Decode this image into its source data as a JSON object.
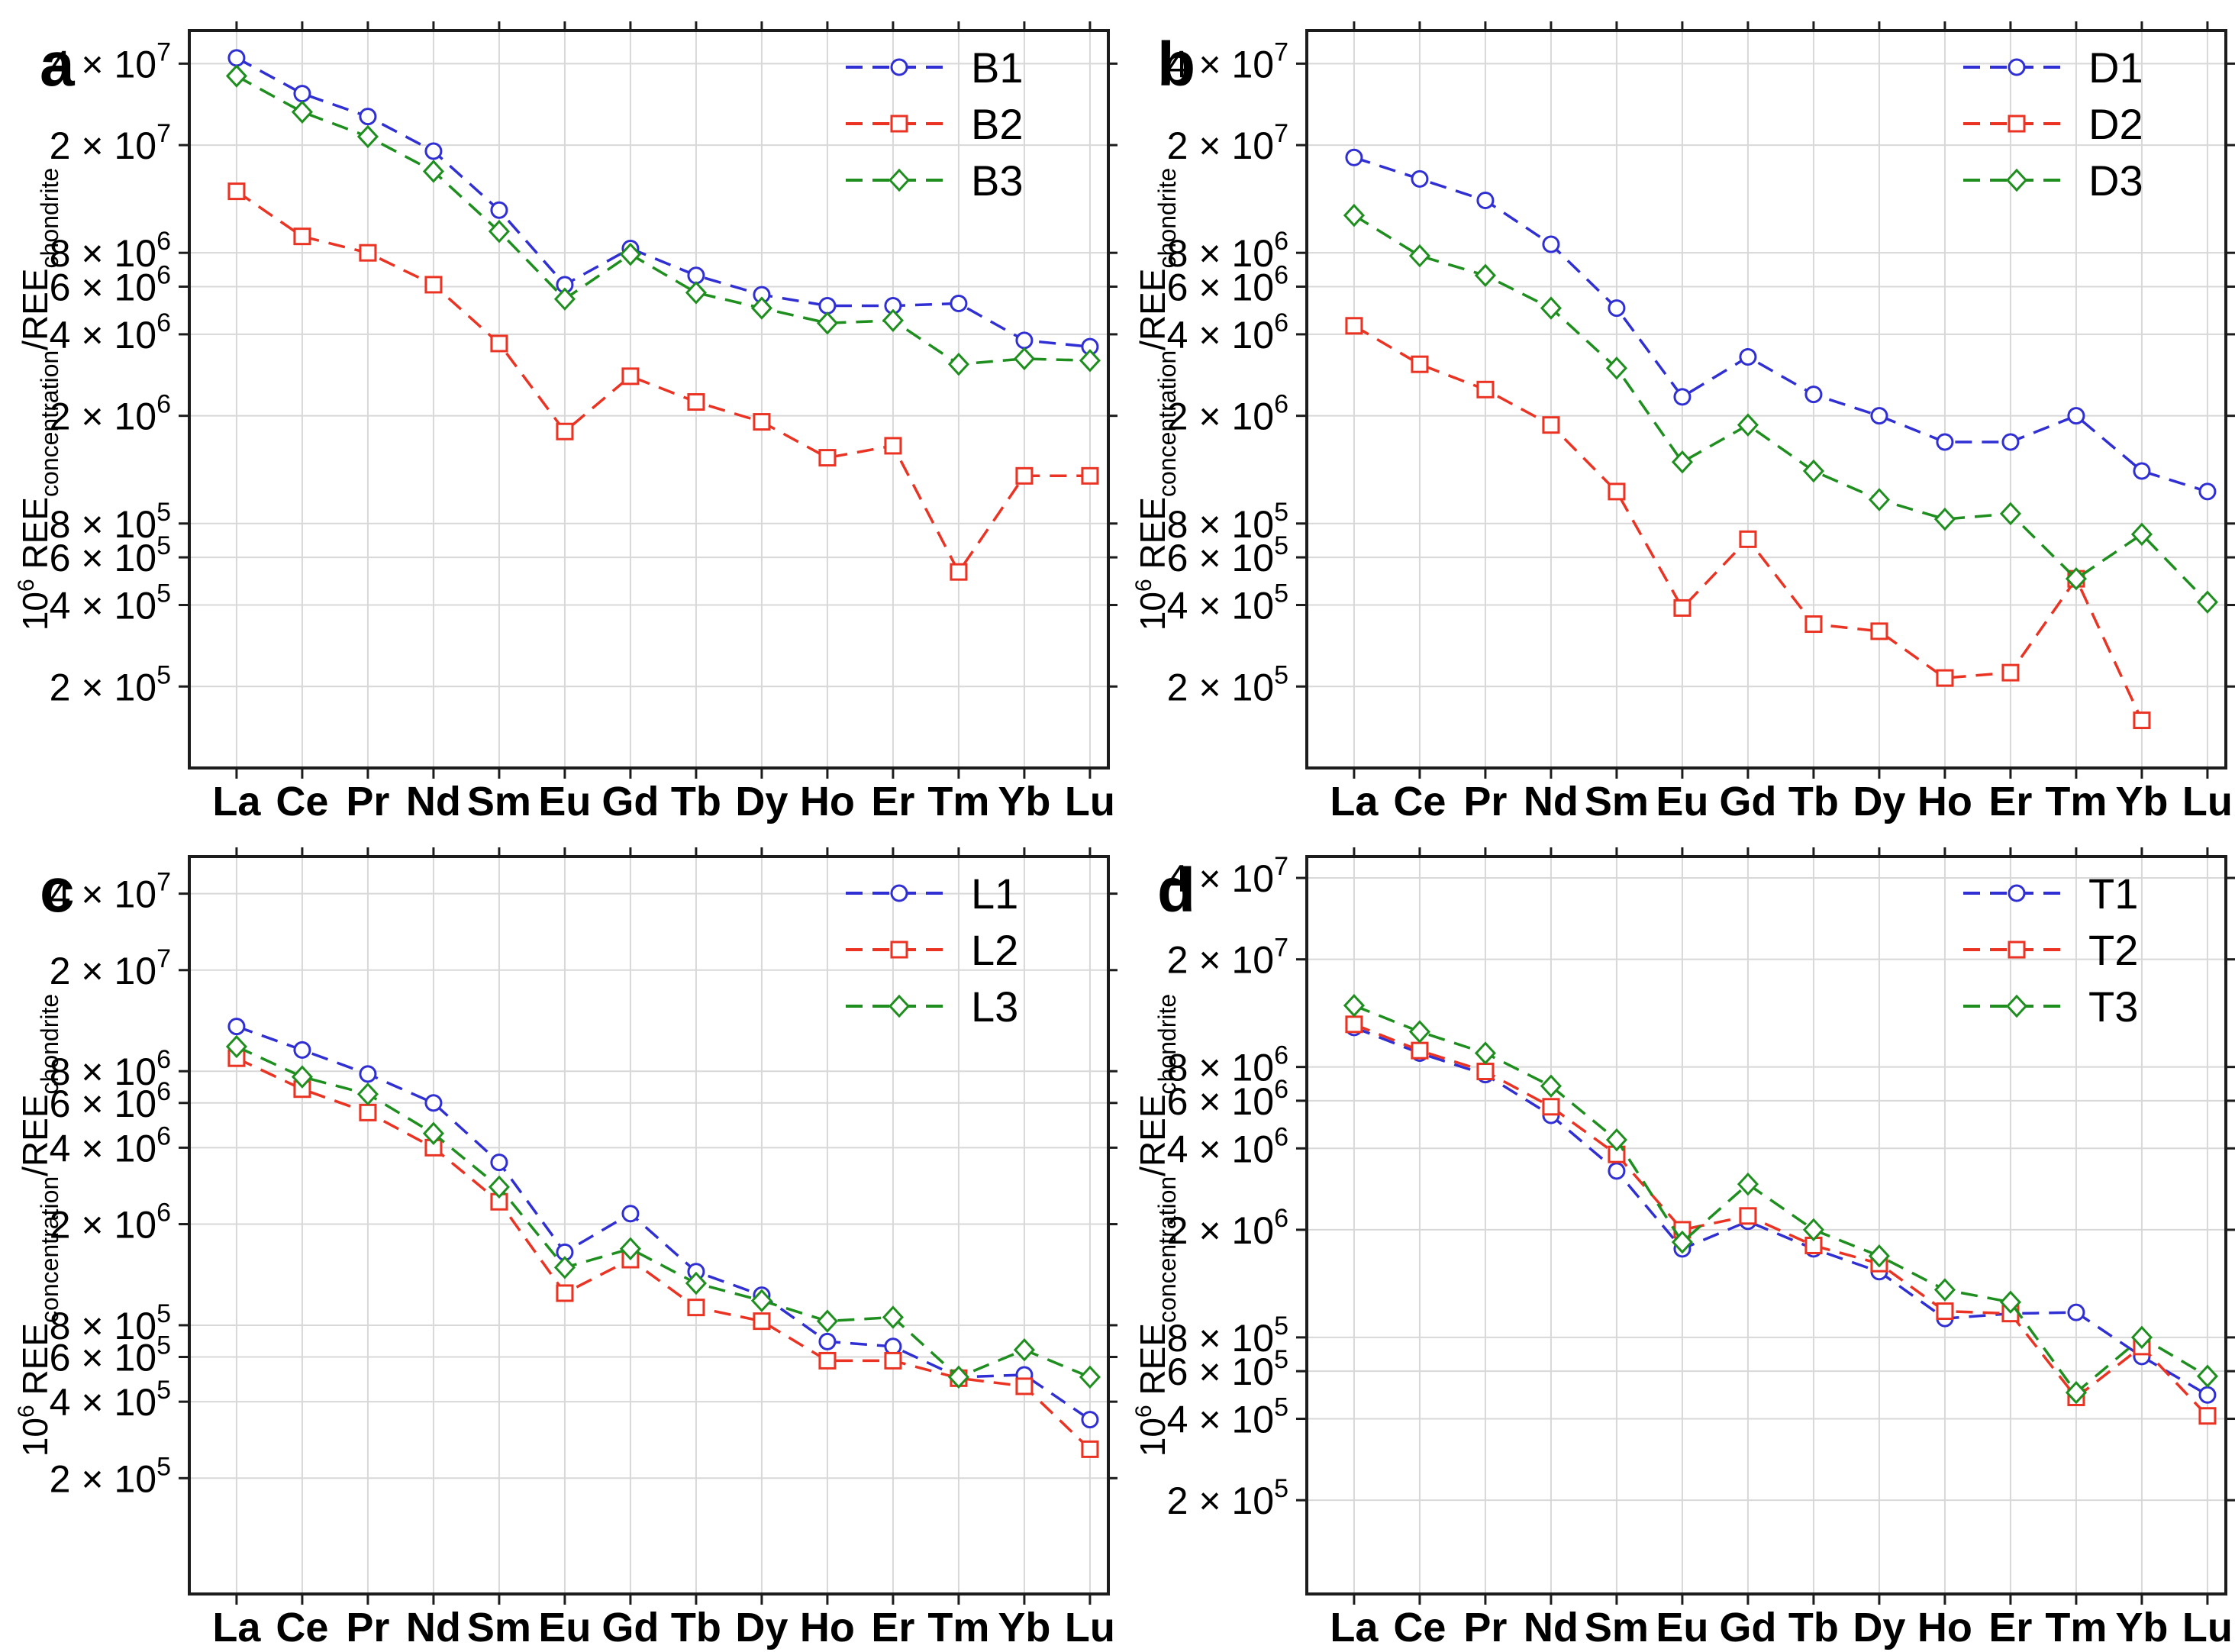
{
  "chart_data": {
    "type": "line",
    "y_scale": "log",
    "grid": true,
    "legend_position": "top-right-inside",
    "x_categories": [
      "La",
      "Ce",
      "Pr",
      "Nd",
      "Sm",
      "Eu",
      "Gd",
      "Tb",
      "Dy",
      "Ho",
      "Er",
      "Tm",
      "Yb",
      "Lu"
    ],
    "ylabel": "10^6 REE_concentration/REE_chondrite",
    "ylabel_parts": [
      {
        "t": "10",
        "style": "normal"
      },
      {
        "t": "6",
        "style": "sup"
      },
      {
        "t": " REE",
        "style": "normal"
      },
      {
        "t": "concentration",
        "style": "sub"
      },
      {
        "t": "/REE",
        "style": "normal"
      },
      {
        "t": "chondrite",
        "style": "sub"
      }
    ],
    "y_tick_labels": [
      {
        "mantissa": "4",
        "exponent": "7",
        "value": 40000000
      },
      {
        "mantissa": "2",
        "exponent": "7",
        "value": 20000000
      },
      {
        "mantissa": "8",
        "exponent": "6",
        "value": 8000000
      },
      {
        "mantissa": "6",
        "exponent": "6",
        "value": 6000000
      },
      {
        "mantissa": "4",
        "exponent": "6",
        "value": 4000000
      },
      {
        "mantissa": "2",
        "exponent": "6",
        "value": 2000000
      },
      {
        "mantissa": "8",
        "exponent": "5",
        "value": 800000
      },
      {
        "mantissa": "6",
        "exponent": "5",
        "value": 600000
      },
      {
        "mantissa": "4",
        "exponent": "5",
        "value": 400000
      },
      {
        "mantissa": "2",
        "exponent": "5",
        "value": 200000
      }
    ],
    "colors": {
      "series_blue": "#2f2fd3",
      "series_red": "#ea3323",
      "series_green": "#1e8e1e",
      "grid": "#d8d8d8",
      "axis": "#1c1c1c",
      "text": "#000000"
    },
    "panels": [
      {
        "letter": "a",
        "ylim": [
          100000,
          53000000
        ],
        "series": [
          {
            "name": "B1",
            "color": "#2f2fd3",
            "marker": "circle",
            "values": [
              42000000,
              31000000,
              25500000,
              19000000,
              11500000,
              6100000,
              8300000,
              6600000,
              5600000,
              5100000,
              5100000,
              5200000,
              3800000,
              3600000
            ]
          },
          {
            "name": "B2",
            "color": "#ea3323",
            "marker": "square",
            "values": [
              13500000,
              9200000,
              8000000,
              6100000,
              3700000,
              1750000,
              2800000,
              2250000,
              1900000,
              1400000,
              1550000,
              530000,
              1200000,
              1200000
            ]
          },
          {
            "name": "B3",
            "color": "#1e8e1e",
            "marker": "diamond",
            "values": [
              36000000,
              26500000,
              21500000,
              16000000,
              9600000,
              5400000,
              7900000,
              5700000,
              5000000,
              4400000,
              4500000,
              3100000,
              3250000,
              3200000
            ]
          }
        ]
      },
      {
        "letter": "b",
        "ylim": [
          100000,
          53000000
        ],
        "series": [
          {
            "name": "D1",
            "color": "#2f2fd3",
            "marker": "circle",
            "values": [
              18000000,
              15000000,
              12500000,
              8600000,
              5000000,
              2350000,
              3300000,
              2400000,
              2000000,
              1600000,
              1600000,
              2000000,
              1250000,
              1050000
            ]
          },
          {
            "name": "D2",
            "color": "#ea3323",
            "marker": "square",
            "values": [
              4300000,
              3100000,
              2500000,
              1850000,
              1050000,
              390000,
              700000,
              340000,
              320000,
              215000,
              225000,
              500000,
              150000,
              null
            ]
          },
          {
            "name": "D3",
            "color": "#1e8e1e",
            "marker": "diamond",
            "values": [
              11000000,
              7800000,
              6600000,
              5000000,
              3000000,
              1350000,
              1850000,
              1250000,
              980000,
              830000,
              870000,
              500000,
              730000,
              410000
            ]
          }
        ]
      },
      {
        "letter": "c",
        "ylim": [
          70000,
          56000000
        ],
        "series": [
          {
            "name": "L1",
            "color": "#2f2fd3",
            "marker": "circle",
            "values": [
              12000000,
              9700000,
              7800000,
              6000000,
              3500000,
              1550000,
              2200000,
              1300000,
              1050000,
              690000,
              660000,
              500000,
              510000,
              340000
            ]
          },
          {
            "name": "L2",
            "color": "#ea3323",
            "marker": "square",
            "values": [
              9000000,
              6800000,
              5500000,
              4000000,
              2450000,
              1070000,
              1450000,
              940000,
              830000,
              580000,
              580000,
              495000,
              460000,
              260000
            ]
          },
          {
            "name": "L3",
            "color": "#1e8e1e",
            "marker": "diamond",
            "values": [
              10000000,
              7600000,
              6500000,
              4550000,
              2800000,
              1350000,
              1600000,
              1170000,
              1000000,
              830000,
              860000,
              500000,
              640000,
              500000
            ]
          }
        ]
      },
      {
        "letter": "d",
        "ylim": [
          90000,
          48000000
        ],
        "series": [
          {
            "name": "T1",
            "color": "#2f2fd3",
            "marker": "circle",
            "values": [
              11200000,
              9000000,
              7500000,
              5300000,
              3300000,
              1700000,
              2150000,
              1700000,
              1400000,
              940000,
              980000,
              990000,
              680000,
              490000
            ]
          },
          {
            "name": "T2",
            "color": "#ea3323",
            "marker": "square",
            "values": [
              11500000,
              9200000,
              7700000,
              5700000,
              3800000,
              2000000,
              2250000,
              1750000,
              1500000,
              1000000,
              980000,
              480000,
              740000,
              410000
            ]
          },
          {
            "name": "T3",
            "color": "#1e8e1e",
            "marker": "diamond",
            "values": [
              13500000,
              10800000,
              9000000,
              6800000,
              4300000,
              1800000,
              2950000,
              2000000,
              1600000,
              1200000,
              1080000,
              500000,
              800000,
              575000
            ]
          }
        ]
      }
    ]
  }
}
